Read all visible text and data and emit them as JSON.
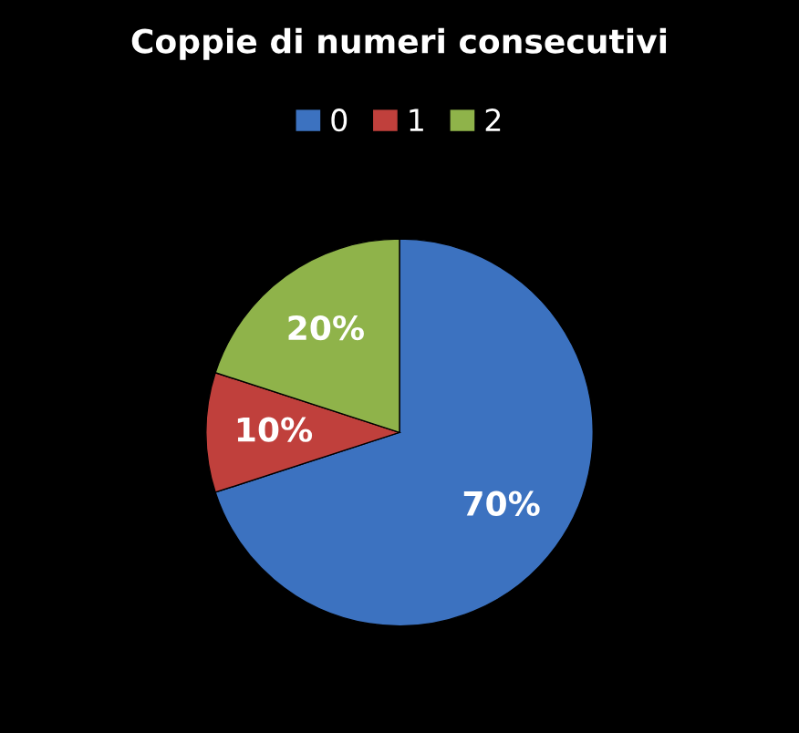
{
  "chart_data": {
    "type": "pie",
    "title": "Coppie di numeri consecutivi",
    "categories": [
      "0",
      "1",
      "2"
    ],
    "values": [
      70,
      10,
      20
    ],
    "colors": [
      "#3c72c0",
      "#c0403c",
      "#8fb34a"
    ],
    "value_labels": [
      "70%",
      "10%",
      "20%"
    ],
    "legend": "top"
  }
}
